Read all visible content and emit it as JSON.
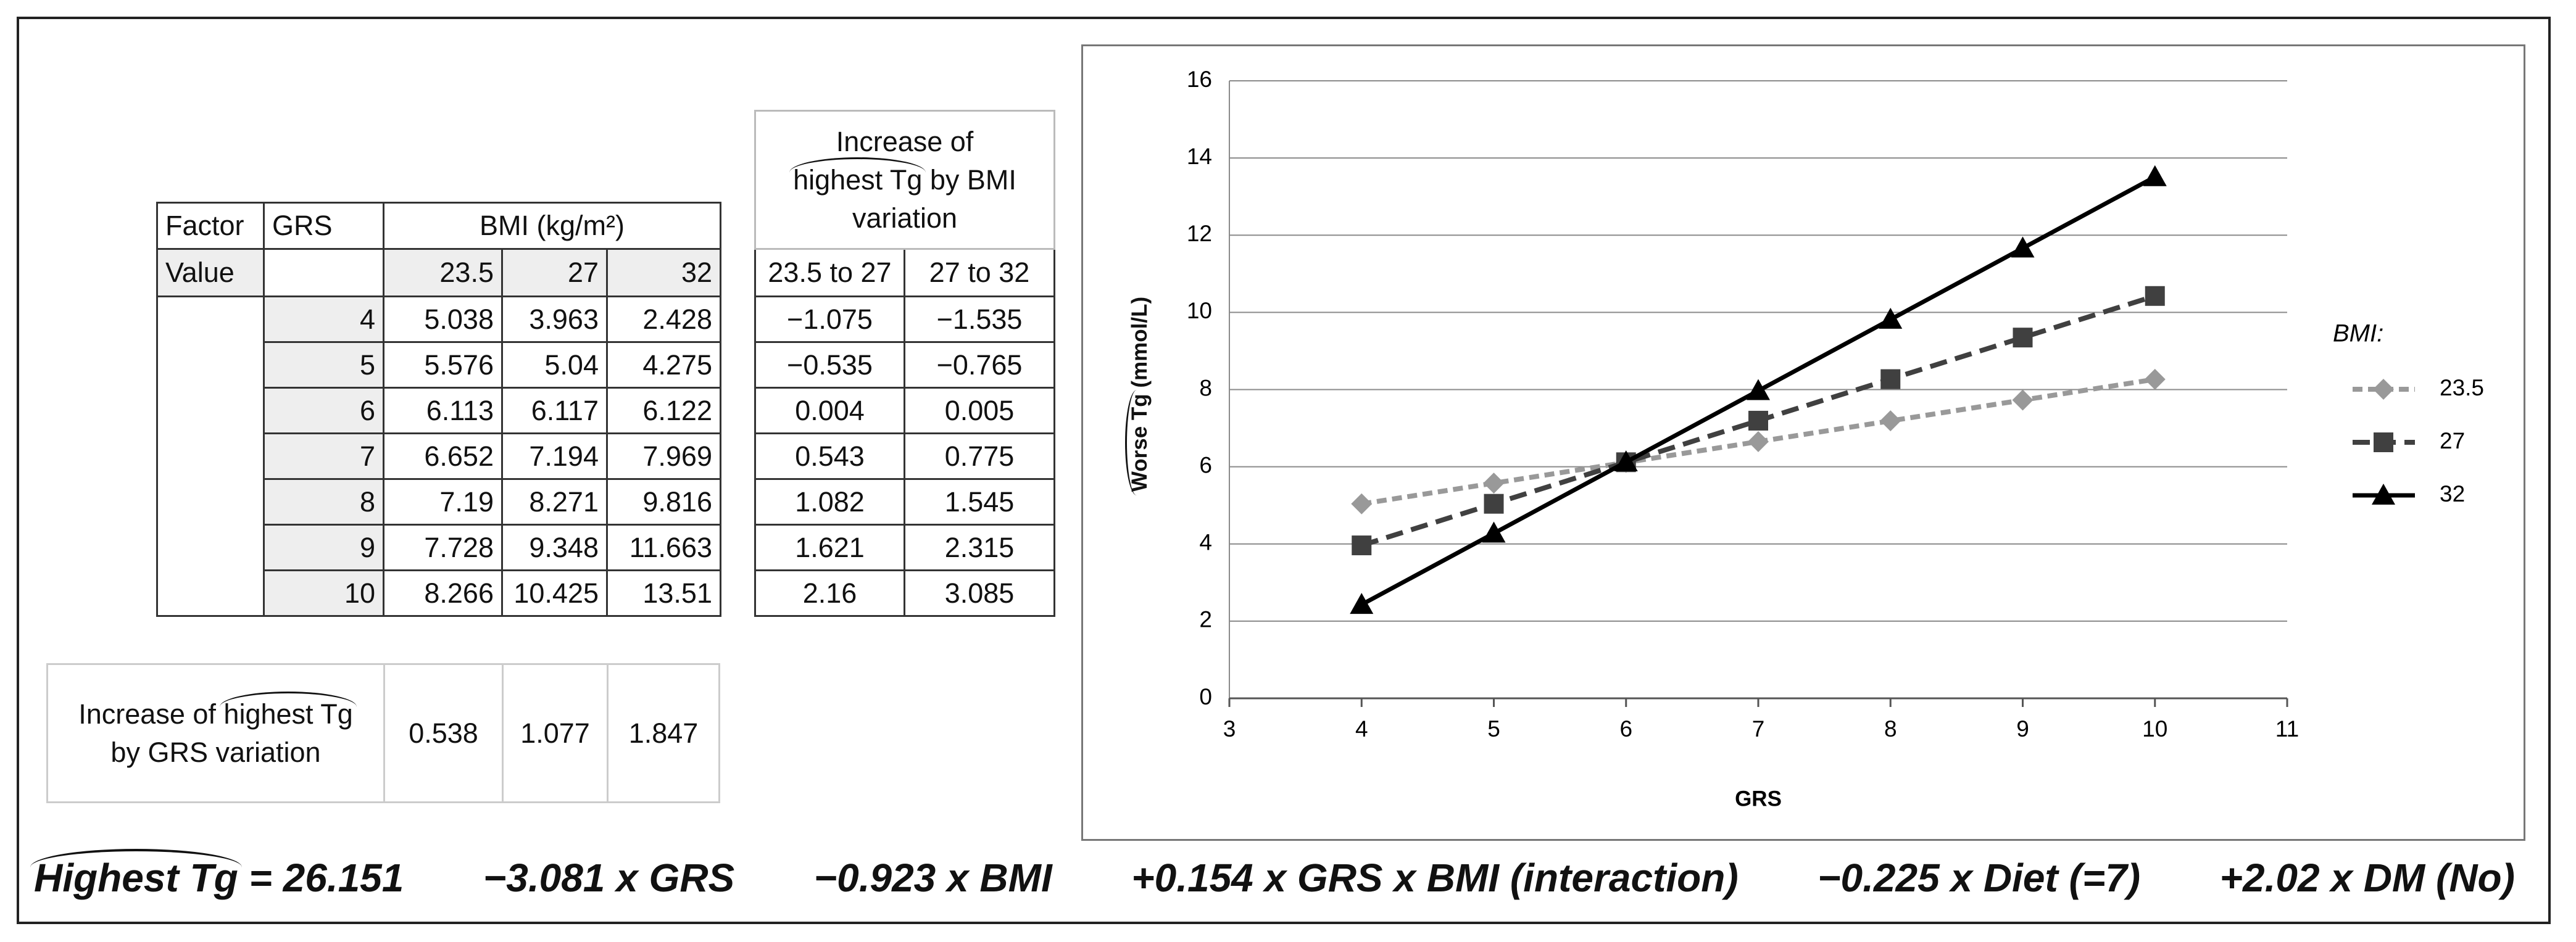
{
  "table": {
    "header": [
      "Factor",
      "GRS",
      "BMI (kg/m²)"
    ],
    "value_label": "Value",
    "bmi": [
      23.5,
      27,
      32
    ],
    "rows": [
      {
        "grs": 4,
        "values": [
          5.038,
          3.963,
          2.428
        ]
      },
      {
        "grs": 5,
        "values": [
          5.576,
          5.04,
          4.275
        ]
      },
      {
        "grs": 6,
        "values": [
          6.113,
          6.117,
          6.122
        ]
      },
      {
        "grs": 7,
        "values": [
          6.652,
          7.194,
          7.969
        ]
      },
      {
        "grs": 8,
        "values": [
          7.19,
          8.271,
          9.816
        ]
      },
      {
        "grs": 9,
        "values": [
          7.728,
          9.348,
          11.663
        ]
      },
      {
        "grs": 10,
        "values": [
          8.266,
          10.425,
          13.51
        ]
      }
    ]
  },
  "bmi_variation": {
    "title_parts": [
      "Increase of",
      "highest Tg",
      "by BMI variation"
    ],
    "columns": [
      "23.5 to 27",
      "27 to 32"
    ],
    "rows": [
      [
        "−1.075",
        "−1.535"
      ],
      [
        "−0.535",
        "−0.765"
      ],
      [
        0.004,
        0.005
      ],
      [
        0.543,
        0.775
      ],
      [
        1.082,
        1.545
      ],
      [
        1.621,
        2.315
      ],
      [
        2.16,
        3.085
      ]
    ]
  },
  "grs_variation": {
    "label_parts": [
      "Increase of",
      "highest Tg",
      "by GRS variation"
    ],
    "values": [
      0.538,
      1.077,
      1.847
    ]
  },
  "equation": {
    "lhs": "Highest Tg",
    "terms": [
      "= 26.151",
      "−3.081 x GRS",
      "−0.923 x BMI",
      "+0.154 x GRS x BMI (interaction)",
      "−0.225 x Diet (=7)",
      "+2.02 x DM (No)"
    ]
  },
  "chart_data": {
    "type": "line",
    "xlabel": "GRS",
    "ylabel": [
      "Worse Tg",
      "(mmol/L)"
    ],
    "legend_title": "BMI:",
    "legend": "right",
    "grid": true,
    "x": [
      4,
      5,
      6,
      7,
      8,
      9,
      10
    ],
    "xlim": [
      3,
      11
    ],
    "xticks": [
      3,
      4,
      5,
      6,
      7,
      8,
      9,
      10,
      11
    ],
    "ylim": [
      0,
      16
    ],
    "yticks": [
      0,
      2,
      4,
      6,
      8,
      10,
      12,
      14,
      16
    ],
    "series": [
      {
        "name": "23.5",
        "color": "#999999",
        "marker": "diamond",
        "dash": "dotted",
        "values": [
          5.038,
          5.576,
          6.113,
          6.652,
          7.19,
          7.728,
          8.266
        ]
      },
      {
        "name": "27",
        "color": "#404040",
        "marker": "square",
        "dash": "dashed",
        "values": [
          3.963,
          5.04,
          6.117,
          7.194,
          8.271,
          9.348,
          10.425
        ]
      },
      {
        "name": "32",
        "color": "#000000",
        "marker": "triangle",
        "dash": "solid",
        "values": [
          2.428,
          4.275,
          6.122,
          7.969,
          9.816,
          11.663,
          13.51
        ]
      }
    ]
  }
}
